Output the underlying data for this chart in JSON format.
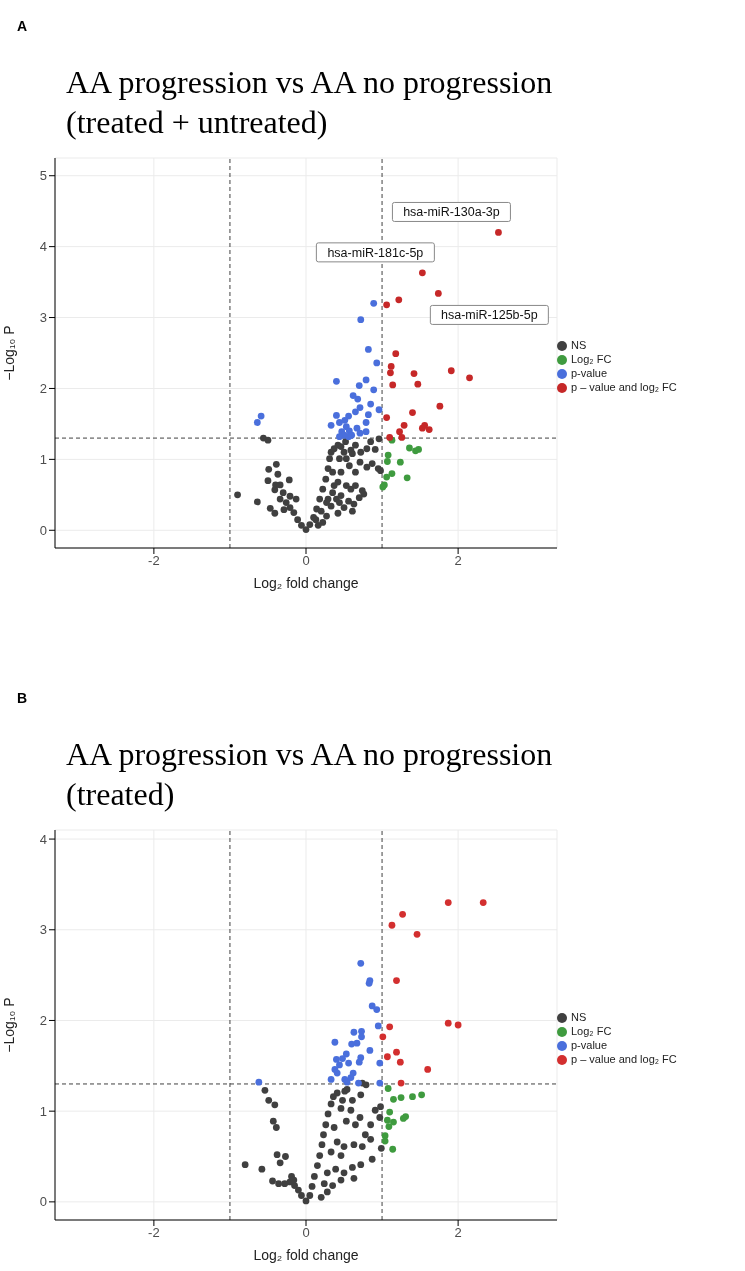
{
  "chart_data": [
    {
      "type": "scatter",
      "title": "AA progression vs AA no progression\n(treated + untreated)",
      "xlabel": "Log₂ fold change",
      "ylabel": "−Log₁₀ P",
      "xlim": [
        -3.3,
        3.3
      ],
      "ylim": [
        -0.25,
        5.25
      ],
      "xticks": [
        -2,
        0,
        2
      ],
      "yticks": [
        0,
        1,
        2,
        3,
        4,
        5
      ],
      "grid": true,
      "legend": "right",
      "marker": "circle",
      "ref_lines": [
        {
          "axis": "x",
          "value": -1,
          "line_style": "dashed",
          "color": "#404040"
        },
        {
          "axis": "x",
          "value": 1,
          "line_style": "dashed",
          "color": "#404040"
        },
        {
          "axis": "y",
          "value": 1.3,
          "line_style": "dashed",
          "color": "#404040"
        }
      ],
      "annotations": [
        "A",
        {
          "text": "hsa-miR-130a-3p",
          "x": 2.53,
          "y": 4.2
        },
        {
          "text": "hsa-miR-181c-5p",
          "x": 1.53,
          "y": 3.63
        },
        {
          "text": "hsa-miR-125b-5p",
          "x": 1.74,
          "y": 3.34
        }
      ],
      "series": [
        {
          "name": "NS",
          "color": "#404040",
          "x": [
            -0.9,
            -0.64,
            -0.56,
            -0.5,
            -0.39,
            -0.49,
            -0.37,
            -0.5,
            -0.4,
            -0.34,
            -0.41,
            -0.22,
            -0.47,
            -0.41,
            -0.34,
            -0.26,
            -0.21,
            -0.21,
            -0.16,
            -0.11,
            -0.06,
            0,
            -0.13,
            -0.29,
            -0.3,
            0.05,
            0.1,
            0.14,
            0.18,
            0.22,
            0.26,
            0.29,
            0.31,
            0.33,
            0.37,
            0.42,
            0.46,
            0.52,
            0.5,
            0.59,
            0.65,
            0.72,
            0.8,
            0.85,
            0.96,
            0.91,
            0.87,
            0.95,
            0.98,
            0.8,
            0.71,
            0.65,
            0.57,
            0.46,
            0.42,
            0.53,
            0.59,
            0.65,
            0.76,
            0.74,
            0.7,
            0.63,
            0.61,
            0.5,
            0.42,
            0.33,
            0.27,
            0.22,
            0.16,
            0.35,
            0.4,
            0.27,
            0.46,
            0.35,
            0.44,
            0.53,
            0.61,
            0.37,
            0.29,
            0.13,
            0.2,
            0.44,
            0.56
          ],
          "values": [
            0.5,
            0.4,
            1.3,
            1.27,
            0.93,
            0.86,
            0.79,
            0.7,
            0.64,
            0.64,
            0.57,
            0.71,
            0.31,
            0.24,
            0.44,
            0.39,
            0.48,
            0.32,
            0.25,
            0.15,
            0.07,
            0.01,
            0.44,
            0.29,
            0.53,
            0.08,
            0.18,
            0.3,
            0.44,
            0.58,
            0.72,
            0.87,
            1.01,
            1.1,
            1.15,
            1.2,
            1.18,
            1.25,
            1.1,
            1.13,
            1.2,
            1.1,
            1.15,
            1.25,
            1.29,
            1.14,
            0.94,
            0.87,
            0.84,
            0.89,
            0.96,
            0.82,
            0.91,
            0.82,
            0.68,
            0.63,
            0.58,
            0.63,
            0.51,
            0.56,
            0.46,
            0.37,
            0.27,
            0.32,
            0.24,
            0.34,
            0.2,
            0.11,
            0.07,
            0.53,
            0.44,
            0.39,
            0.49,
            0.82,
            1.01,
            1.01,
            1.08,
            0.63,
            0.44,
            0.15,
            0.27,
            0.39,
            0.41
          ]
        },
        {
          "name": "Log₂ FC",
          "color": "#3f9b3f",
          "x": [
            1.13,
            1.36,
            1.48,
            1.44,
            1.08,
            1.07,
            1.24,
            1.13,
            1.06,
            1.33,
            1.03,
            1.01
          ],
          "values": [
            1.27,
            1.16,
            1.14,
            1.12,
            1.06,
            0.97,
            0.96,
            0.8,
            0.75,
            0.74,
            0.64,
            0.61
          ]
        },
        {
          "name": "p-value",
          "color": "#4a6fdc",
          "x": [
            0.89,
            0.72,
            0.82,
            0.93,
            0.4,
            0.79,
            0.7,
            0.89,
            0.62,
            0.68,
            0.85,
            0.71,
            0.96,
            0.65,
            0.82,
            0.56,
            0.4,
            -0.64,
            -0.59,
            0.33,
            0.44,
            0.51,
            0.53,
            0.67,
            0.79,
            0.47,
            0.57,
            0.6,
            0.5,
            0.79,
            0.71,
            0.44,
            0.56
          ],
          "values": [
            3.2,
            2.97,
            2.55,
            2.36,
            2.1,
            2.12,
            2.04,
            1.98,
            1.9,
            1.85,
            1.78,
            1.73,
            1.7,
            1.67,
            1.63,
            1.61,
            1.62,
            1.52,
            1.61,
            1.48,
            1.52,
            1.55,
            1.46,
            1.44,
            1.52,
            1.39,
            1.4,
            1.34,
            1.34,
            1.39,
            1.37,
            1.32,
            1.32
          ]
        },
        {
          "name": "p – value and log₂ FC",
          "color": "#c62828",
          "x": [
            2.53,
            1.53,
            1.74,
            1.06,
            1.22,
            1.18,
            1.12,
            1.11,
            1.42,
            1.91,
            2.15,
            1.14,
            1.47,
            1.76,
            1.06,
            1.4,
            1.29,
            1.23,
            1.53,
            1.56,
            1.62,
            1.1,
            1.26
          ],
          "values": [
            4.2,
            3.63,
            3.34,
            3.18,
            3.25,
            2.49,
            2.31,
            2.22,
            2.21,
            2.25,
            2.15,
            2.05,
            2.06,
            1.75,
            1.59,
            1.66,
            1.48,
            1.39,
            1.44,
            1.48,
            1.42,
            1.31,
            1.31
          ]
        }
      ]
    },
    {
      "type": "scatter",
      "title": "AA progression vs AA no progression\n(treated)",
      "xlabel": "Log₂ fold change",
      "ylabel": "−Log₁₀ P",
      "xlim": [
        -3.3,
        3.3
      ],
      "ylim": [
        -0.2,
        4.1
      ],
      "xticks": [
        -2,
        0,
        2
      ],
      "yticks": [
        0,
        1,
        2,
        3,
        4
      ],
      "grid": true,
      "legend": "right",
      "marker": "circle",
      "ref_lines": [
        {
          "axis": "x",
          "value": -1,
          "line_style": "dashed",
          "color": "#404040"
        },
        {
          "axis": "x",
          "value": 1,
          "line_style": "dashed",
          "color": "#404040"
        },
        {
          "axis": "y",
          "value": 1.3,
          "line_style": "dashed",
          "color": "#404040"
        }
      ],
      "annotations": [
        "B"
      ],
      "series": [
        {
          "name": "NS",
          "color": "#404040",
          "x": [
            -0.8,
            -0.58,
            -0.54,
            -0.49,
            -0.41,
            -0.43,
            -0.39,
            -0.38,
            -0.27,
            -0.34,
            -0.44,
            -0.36,
            -0.28,
            -0.19,
            -0.15,
            -0.1,
            -0.06,
            0,
            -0.21,
            -0.16,
            0.05,
            0.08,
            0.11,
            0.15,
            0.18,
            0.21,
            0.23,
            0.26,
            0.29,
            0.33,
            0.36,
            0.41,
            0.51,
            0.54,
            0.74,
            0.79,
            0.72,
            0.61,
            0.48,
            0.46,
            0.59,
            0.71,
            0.65,
            0.53,
            0.37,
            0.91,
            0.98,
            0.97,
            0.85,
            0.78,
            0.85,
            0.99,
            0.63,
            0.74,
            0.5,
            0.87,
            0.72,
            0.61,
            0.5,
            0.63,
            0.46,
            0.35,
            0.28,
            0.2,
            0.39,
            0.33,
            0.41,
            0.28,
            0.24,
            0.46
          ],
          "values": [
            0.41,
            0.36,
            1.23,
            1.12,
            1.07,
            0.89,
            0.82,
            0.52,
            0.5,
            0.43,
            0.23,
            0.2,
            0.2,
            0.28,
            0.18,
            0.13,
            0.07,
            0.01,
            0.22,
            0.24,
            0.07,
            0.17,
            0.28,
            0.4,
            0.51,
            0.63,
            0.74,
            0.85,
            0.97,
            1.08,
            1.16,
            1.2,
            1.22,
            1.24,
            1.31,
            1.29,
            1.18,
            1.12,
            1.12,
            1.03,
            1.01,
            0.93,
            0.85,
            0.89,
            0.82,
            1.01,
            1.05,
            0.93,
            0.85,
            0.74,
            0.69,
            0.59,
            0.63,
            0.61,
            0.61,
            0.47,
            0.41,
            0.38,
            0.32,
            0.26,
            0.24,
            0.18,
            0.11,
            0.05,
            0.36,
            0.55,
            0.66,
            0.32,
            0.2,
            0.51
          ]
        },
        {
          "name": "Log₂ FC",
          "color": "#3f9b3f",
          "x": [
            1.08,
            1.52,
            1.4,
            1.25,
            1.15,
            1.1,
            1.31,
            1.28,
            1.07,
            1.15,
            1.09,
            1.04,
            1.04,
            1.14
          ],
          "values": [
            1.25,
            1.18,
            1.16,
            1.15,
            1.13,
            0.99,
            0.94,
            0.92,
            0.9,
            0.88,
            0.83,
            0.73,
            0.67,
            0.58
          ]
        },
        {
          "name": "p-value",
          "color": "#4a6fdc",
          "x": [
            0.72,
            0.84,
            0.83,
            0.87,
            0.93,
            0.95,
            0.63,
            0.73,
            0.73,
            0.38,
            0.6,
            0.67,
            0.53,
            0.84,
            0.4,
            0.48,
            0.72,
            0.7,
            0.56,
            0.44,
            0.97,
            0.38,
            0.41,
            0.62,
            0.33,
            0.51,
            0.54,
            0.59,
            -0.62,
            0.69,
            0.97
          ],
          "values": [
            2.63,
            2.44,
            2.41,
            2.16,
            2.12,
            1.94,
            1.87,
            1.88,
            1.82,
            1.76,
            1.74,
            1.75,
            1.63,
            1.67,
            1.57,
            1.58,
            1.59,
            1.54,
            1.53,
            1.51,
            1.53,
            1.46,
            1.42,
            1.42,
            1.35,
            1.35,
            1.32,
            1.37,
            1.32,
            1.31,
            1.31
          ]
        },
        {
          "name": "p – value and log₂ FC",
          "color": "#d32f2f",
          "x": [
            1.87,
            2.33,
            1.27,
            1.13,
            1.46,
            1.19,
            1.87,
            2.0,
            1.1,
            1.01,
            1.19,
            1.07,
            1.24,
            1.6,
            1.25
          ],
          "values": [
            3.3,
            3.3,
            3.17,
            3.05,
            2.95,
            2.44,
            1.97,
            1.95,
            1.93,
            1.82,
            1.65,
            1.6,
            1.54,
            1.46,
            1.31
          ]
        }
      ]
    }
  ]
}
